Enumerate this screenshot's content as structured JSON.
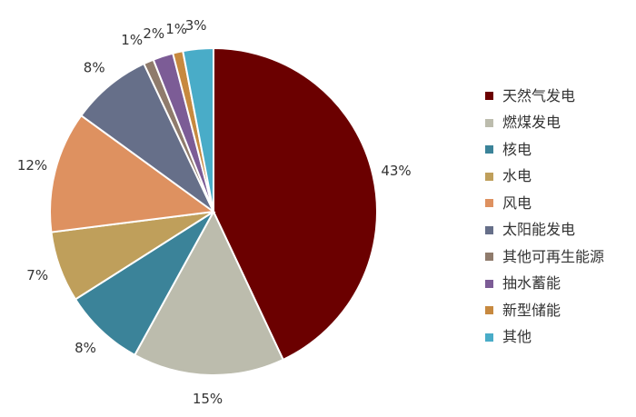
{
  "chart_data": {
    "type": "pie",
    "title": "",
    "legend_position": "right",
    "categories": [
      "天然气发电",
      "燃煤发电",
      "核电",
      "水电",
      "风电",
      "太阳能发电",
      "其他可再生能源",
      "抽水蓄能",
      "新型储能",
      "其他"
    ],
    "values": [
      43,
      15,
      8,
      7,
      12,
      8,
      1,
      2,
      1,
      3
    ],
    "labels": [
      "43%",
      "15%",
      "8%",
      "7%",
      "12%",
      "8%",
      "1%",
      "2%",
      "1%",
      "3%"
    ],
    "colors": [
      "#6b0000",
      "#bcbcad",
      "#3b8399",
      "#bf9f5b",
      "#de9160",
      "#666f89",
      "#8f7b6c",
      "#7c5c96",
      "#c7893f",
      "#49acc8"
    ]
  }
}
